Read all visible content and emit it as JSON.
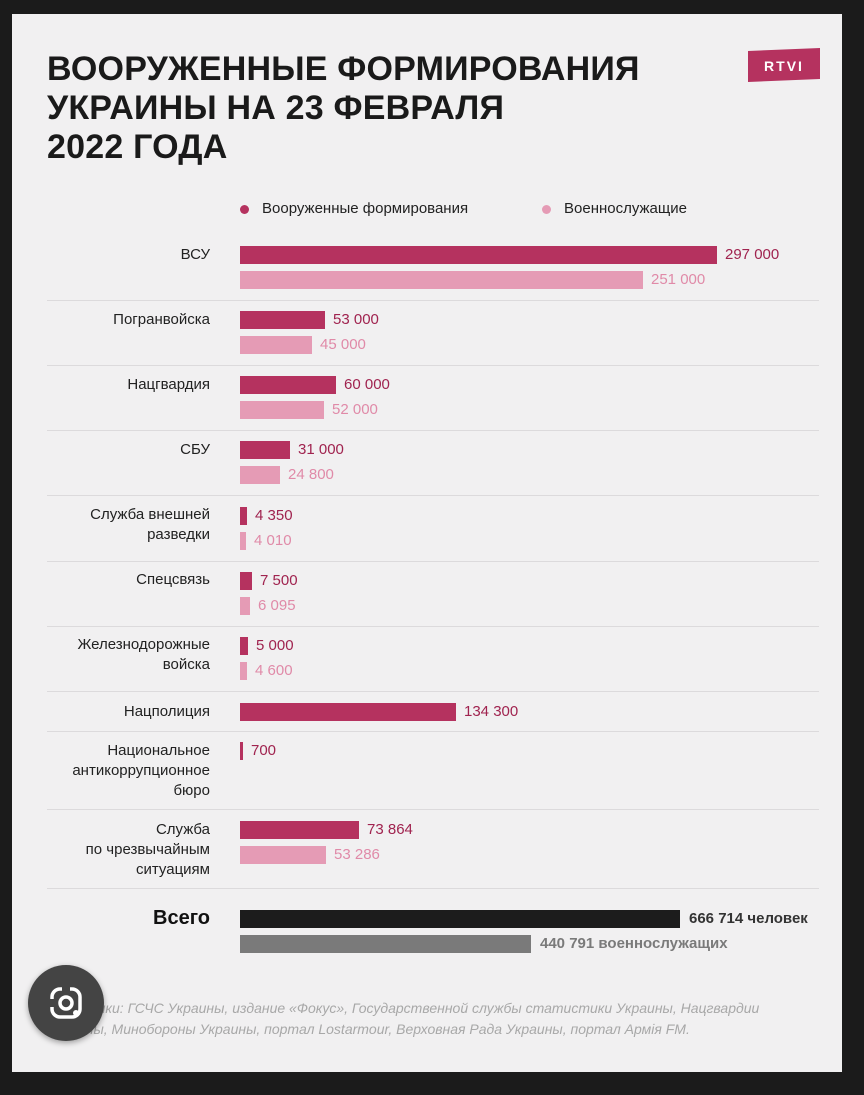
{
  "title": "ВООРУЖЕННЫЕ ФОРМИРОВАНИЯ\nУКРАИНЫ НА 23 ФЕВРАЛЯ\n2022 ГОДА",
  "logo": "RTVI",
  "colors": {
    "armed": "#b5325f",
    "military": "#e59bb5",
    "total_armed": "#1c1c1c",
    "total_military": "#7a7a7a",
    "logo_bg": "#b5325f",
    "label_armed": "#a0234f",
    "label_military": "#e08aa8",
    "label_total": "#333333"
  },
  "source": "Источники: ГСЧС Украины, издание «Фокус», Государственной службы статистики Украины, Нацгвардии Украины, Минобороны Украины, портал Lostarmour, Верховная Рада Украины, портал Армія FM.",
  "icons": {
    "lens": "google-lens-icon"
  },
  "chart_data": {
    "type": "bar",
    "orientation": "horizontal",
    "legend_position": "top",
    "series": [
      {
        "name": "Вооруженные формирования",
        "values": [
          297000,
          53000,
          60000,
          31000,
          4350,
          7500,
          5000,
          134300,
          700,
          73864
        ]
      },
      {
        "name": "Военнослужащие",
        "values": [
          251000,
          45000,
          52000,
          24800,
          4010,
          6095,
          4600,
          null,
          null,
          53286
        ]
      }
    ],
    "categories": [
      "ВСУ",
      "Погранвойска",
      "Нацгвардия",
      "СБУ",
      "Служба внешней\nразведки",
      "Спецсвязь",
      "Железнодорожные\nвойска",
      "Нацполиция",
      "Национальное\nантикоррупционное\nбюро",
      "Служба\nпо чрезвычайным\nситуациям"
    ],
    "value_labels": {
      "armed": [
        "297 000",
        "53 000",
        "60 000",
        "31 000",
        "4 350",
        "7 500",
        "5 000",
        "134 300",
        "700",
        "73 864"
      ],
      "military": [
        "251 000",
        "45 000",
        "52 000",
        "24 800",
        "4 010",
        "6 095",
        "4 600",
        null,
        null,
        "53 286"
      ]
    },
    "total": {
      "label": "Всего",
      "armed_value": 666714,
      "military_value": 440791,
      "armed_label": "666 714 человек",
      "military_label": "440 791 военнослужащих"
    }
  }
}
